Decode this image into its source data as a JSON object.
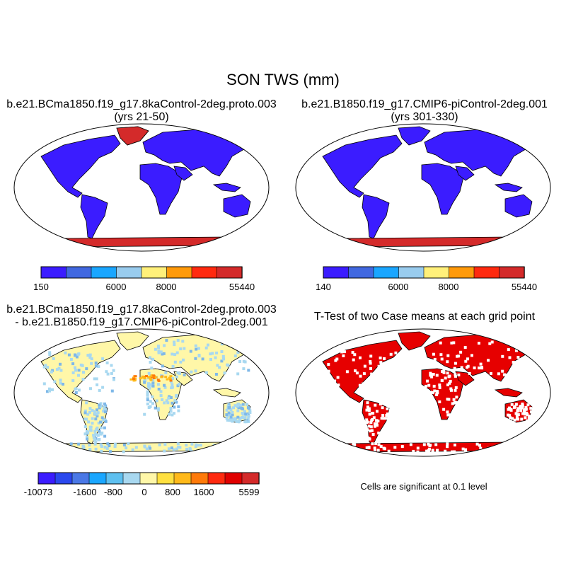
{
  "figure": {
    "title": "SON TWS (mm)"
  },
  "panels": {
    "top_left": {
      "title_line1": "b.e21.BCma1850.f19_g17.8kaControl-2deg.proto.003",
      "title_line2": "(yrs 21-50)",
      "colorbar": {
        "colors": [
          "#3b1cff",
          "#4168e0",
          "#1aa6ff",
          "#99ccee",
          "#fff07a",
          "#ff9a0a",
          "#ff2a0f",
          "#d42a2a"
        ],
        "labels": [
          "150",
          "6000",
          "8000",
          "55440"
        ]
      }
    },
    "top_right": {
      "title_line1": "b.e21.B1850.f19_g17.CMIP6-piControl-2deg.001",
      "title_line2": "(yrs 301-330)",
      "colorbar": {
        "colors": [
          "#3b1cff",
          "#4168e0",
          "#1aa6ff",
          "#99ccee",
          "#fff07a",
          "#ff9a0a",
          "#ff2a0f",
          "#d42a2a"
        ],
        "labels": [
          "140",
          "6000",
          "8000",
          "55440"
        ]
      }
    },
    "bottom_left": {
      "title_line1": "b.e21.BCma1850.f19_g17.8kaControl-2deg.proto.003",
      "title_line2": "- b.e21.B1850.f19_g17.CMIP6-piControl-2deg.001",
      "colorbar": {
        "colors": [
          "#3b1cff",
          "#2a48ee",
          "#4a78e6",
          "#1aa6ff",
          "#5ec0f0",
          "#a8d8f0",
          "#fff7a8",
          "#ffe040",
          "#ffb91a",
          "#ff7a0a",
          "#ff2a0f",
          "#e00000",
          "#d42a2a"
        ],
        "labels": [
          "-10073",
          "-1600",
          "-800",
          "0",
          "800",
          "1600",
          "5599"
        ]
      }
    },
    "bottom_right": {
      "title_line1": "T-Test of two Case means at each grid point",
      "note": "Cells are significant at 0.1 level"
    }
  },
  "style": {
    "ocean": "#ffffff",
    "land_high": "#3b1cff",
    "ice": "#d42a2a",
    "diff_base": "#fff7a8",
    "diff_neg": "#a8d8f0",
    "diff_dry": "#ffb91a",
    "signif": "#e60000"
  }
}
